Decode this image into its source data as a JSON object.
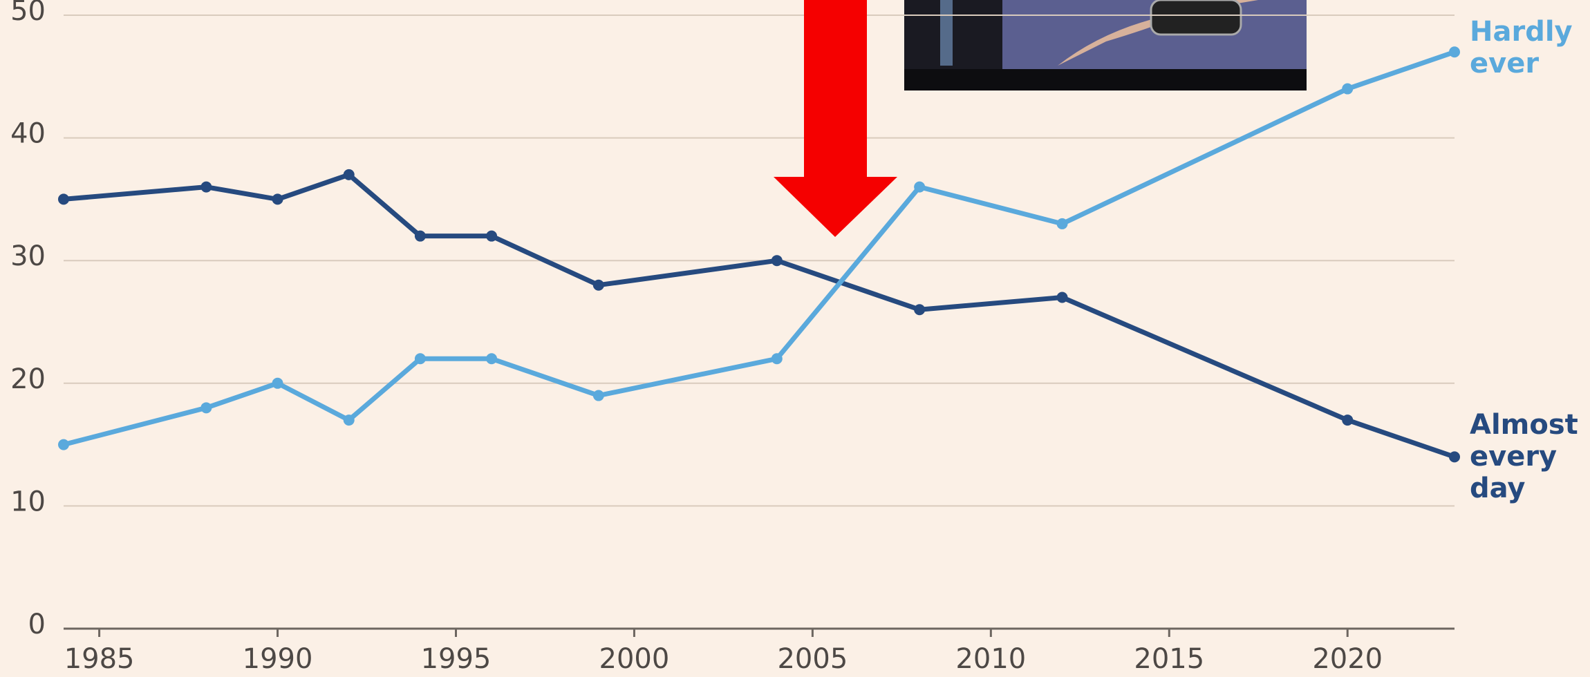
{
  "chart_data": {
    "type": "line",
    "x": [
      1984,
      1988,
      1990,
      1992,
      1994,
      1996,
      1999,
      2004,
      2008,
      2012,
      2020,
      2023
    ],
    "series": [
      {
        "name": "Almost every day",
        "color": "#264a7f",
        "values": [
          35,
          36,
          35,
          37,
          32,
          32,
          28,
          30,
          26,
          27,
          17,
          14
        ]
      },
      {
        "name": "Hardly ever",
        "color": "#5aa9dc",
        "values": [
          15,
          18,
          20,
          17,
          22,
          22,
          19,
          22,
          36,
          33,
          44,
          47
        ]
      }
    ],
    "xlim": [
      1984,
      2023
    ],
    "xticks": [
      1985,
      1990,
      1995,
      2000,
      2005,
      2010,
      2015,
      2020
    ],
    "ylim": [
      0,
      50
    ],
    "yticks": [
      0,
      10,
      20,
      30,
      40,
      50
    ],
    "grid": true
  }
}
